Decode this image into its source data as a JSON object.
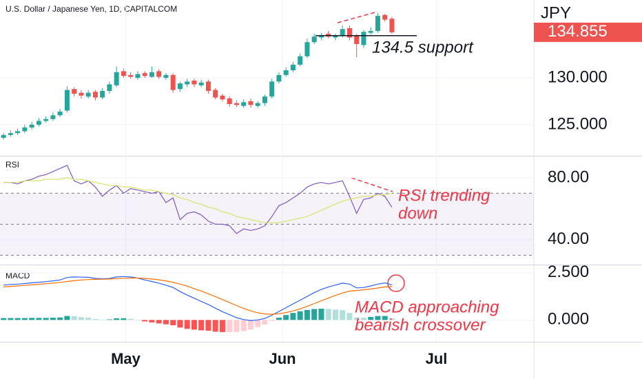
{
  "chart_data": [
    {
      "type": "candlestick",
      "title": "U.S. Dollar / Japanese Yen, 1D, CAPITALCOM",
      "ylabel": "JPY",
      "up_color": "#26a69a",
      "down_color": "#ef5350",
      "open": [
        123.6,
        123.9,
        124.1,
        124.3,
        124.7,
        125.0,
        125.4,
        125.6,
        126.0,
        126.5,
        128.8,
        128.4,
        128.0,
        128.5,
        127.9,
        128.6,
        129.2,
        130.7,
        130.3,
        130.0,
        130.5,
        130.1,
        130.7,
        130.0,
        130.3,
        128.8,
        129.3,
        129.7,
        129.2,
        129.6,
        128.7,
        128.1,
        127.8,
        127.3,
        127.0,
        127.5,
        127.0,
        127.3,
        128.0,
        129.6,
        130.3,
        130.8,
        131.4,
        132.3,
        133.8,
        134.3,
        134.7,
        134.3,
        134.5,
        135.3,
        134.5,
        133.5,
        134.8,
        135.0,
        136.7,
        136.3
      ],
      "high": [
        124.1,
        124.4,
        124.6,
        125.0,
        125.3,
        125.7,
        125.9,
        126.3,
        126.7,
        129.1,
        129.0,
        128.7,
        128.7,
        128.7,
        128.9,
        129.6,
        131.2,
        131.0,
        130.6,
        130.7,
        130.7,
        131.2,
        130.9,
        130.5,
        130.5,
        129.6,
        129.9,
        129.9,
        129.8,
        129.8,
        128.9,
        128.3,
        128.0,
        127.6,
        127.7,
        127.8,
        127.5,
        128.2,
        129.9,
        130.6,
        131.1,
        131.7,
        132.6,
        134.2,
        134.7,
        134.8,
        135.0,
        134.7,
        135.6,
        135.6,
        134.7,
        135.1,
        135.4,
        136.9,
        136.8,
        136.5
      ],
      "low": [
        123.4,
        123.7,
        123.9,
        124.1,
        124.5,
        124.8,
        125.2,
        125.4,
        125.8,
        126.3,
        128.0,
        127.8,
        127.8,
        127.6,
        127.7,
        128.3,
        129.0,
        130.0,
        129.9,
        129.8,
        130.0,
        130.0,
        129.9,
        129.8,
        128.4,
        128.5,
        129.0,
        129.0,
        129.0,
        128.3,
        127.7,
        127.5,
        126.9,
        126.9,
        126.8,
        126.8,
        126.8,
        127.0,
        127.8,
        129.4,
        130.1,
        130.6,
        131.2,
        132.1,
        133.6,
        134.0,
        134.2,
        134.0,
        134.3,
        134.0,
        132.2,
        133.2,
        134.6,
        134.8,
        136.0,
        134.7
      ],
      "close": [
        123.9,
        124.1,
        124.3,
        124.7,
        125.0,
        125.4,
        125.6,
        126.0,
        126.4,
        128.7,
        128.3,
        128.1,
        128.4,
        127.9,
        128.6,
        129.3,
        130.6,
        130.2,
        130.1,
        130.4,
        130.2,
        130.6,
        130.1,
        130.3,
        128.7,
        129.4,
        129.6,
        129.3,
        129.5,
        128.6,
        127.9,
        127.7,
        127.2,
        127.1,
        127.4,
        127.1,
        127.3,
        128.0,
        129.6,
        130.3,
        130.8,
        131.4,
        132.3,
        133.8,
        134.4,
        134.5,
        134.4,
        134.5,
        135.2,
        134.3,
        133.6,
        134.9,
        135.0,
        136.6,
        136.2,
        134.855
      ],
      "ylim": [
        121.76,
        138.3
      ],
      "yticks": [
        {
          "value": 130,
          "label": "130.000"
        },
        {
          "value": 125,
          "label": "125.000"
        }
      ],
      "xlim": [
        -0.5,
        75.1
      ],
      "xticks": [
        {
          "value": 17.3,
          "label": "May"
        },
        {
          "value": 39.5,
          "label": "Jun"
        },
        {
          "value": 61.3,
          "label": "Jul"
        }
      ],
      "support": {
        "value": 134.5,
        "label": "134.5 support"
      }
    },
    {
      "type": "line",
      "title": "RSI",
      "series": [
        {
          "color": "#7e57c2",
          "values": [
            77,
            77,
            76,
            78,
            79,
            81,
            82,
            84,
            86,
            88,
            78,
            76,
            78,
            74,
            68,
            72,
            75,
            70,
            73,
            72,
            71,
            70,
            71,
            64,
            67,
            53,
            57,
            58,
            56,
            52,
            50,
            50,
            49,
            44,
            47,
            46,
            47,
            49,
            55,
            62,
            64,
            67,
            70,
            74,
            76,
            77,
            76,
            77,
            78,
            68,
            57,
            66,
            67,
            70,
            68,
            61
          ]
        },
        {
          "color": "#d9e36a",
          "values": [
            77,
            77,
            77,
            78,
            78,
            78,
            79,
            79,
            79,
            80,
            79,
            79,
            78,
            77,
            76,
            75,
            75,
            74,
            74,
            73,
            72,
            72,
            71,
            70,
            69,
            67,
            66,
            64,
            63,
            61,
            60,
            58,
            57,
            55,
            54,
            53,
            52,
            51,
            51,
            51,
            52,
            53,
            54,
            55,
            57,
            59,
            61,
            63,
            65,
            66,
            67,
            68,
            68,
            69,
            69,
            70
          ]
        }
      ],
      "levels": [
        70,
        50,
        30
      ],
      "band_color": "#7e57c2",
      "ylim": [
        24.4,
        93.3
      ],
      "yticks": [
        {
          "value": 80,
          "label": "80.00"
        },
        {
          "value": 40,
          "label": "40.00"
        }
      ],
      "annotation": [
        "RSI trending",
        "down"
      ]
    },
    {
      "type": "macd",
      "title": "MACD",
      "series": [
        {
          "color": "#2962ff",
          "values": [
            1.85,
            1.88,
            1.9,
            1.93,
            1.97,
            2.0,
            2.03,
            2.07,
            2.12,
            2.25,
            2.28,
            2.27,
            2.26,
            2.2,
            2.18,
            2.2,
            2.28,
            2.3,
            2.28,
            2.22,
            2.12,
            2.04,
            1.95,
            1.84,
            1.72,
            1.5,
            1.32,
            1.15,
            0.98,
            0.82,
            0.62,
            0.44,
            0.28,
            0.12,
            0.02,
            -0.03,
            0.0,
            0.08,
            0.25,
            0.45,
            0.65,
            0.85,
            1.05,
            1.25,
            1.45,
            1.62,
            1.75,
            1.85,
            1.95,
            1.9,
            1.7,
            1.72,
            1.8,
            1.9,
            1.96,
            1.86
          ]
        },
        {
          "color": "#ff6d00",
          "values": [
            1.75,
            1.78,
            1.8,
            1.83,
            1.86,
            1.89,
            1.92,
            1.95,
            1.99,
            2.04,
            2.08,
            2.12,
            2.14,
            2.15,
            2.16,
            2.17,
            2.19,
            2.21,
            2.22,
            2.22,
            2.2,
            2.17,
            2.13,
            2.07,
            2.0,
            1.9,
            1.79,
            1.66,
            1.53,
            1.39,
            1.24,
            1.08,
            0.92,
            0.76,
            0.61,
            0.48,
            0.38,
            0.32,
            0.3,
            0.33,
            0.39,
            0.48,
            0.59,
            0.72,
            0.87,
            1.02,
            1.16,
            1.3,
            1.43,
            1.53,
            1.56,
            1.6,
            1.64,
            1.69,
            1.75,
            1.77
          ]
        }
      ],
      "histogram": {
        "values": [
          0.1,
          0.1,
          0.1,
          0.1,
          0.11,
          0.11,
          0.11,
          0.12,
          0.13,
          0.21,
          0.2,
          0.15,
          0.12,
          0.05,
          0.02,
          0.03,
          0.09,
          0.09,
          0.06,
          0.0,
          -0.08,
          -0.13,
          -0.18,
          -0.23,
          -0.28,
          -0.4,
          -0.47,
          -0.51,
          -0.55,
          -0.57,
          -0.62,
          -0.64,
          -0.64,
          -0.64,
          -0.59,
          -0.51,
          -0.38,
          -0.24,
          -0.05,
          0.12,
          0.26,
          0.37,
          0.46,
          0.53,
          0.58,
          0.6,
          0.59,
          0.55,
          0.52,
          0.37,
          0.14,
          0.12,
          0.16,
          0.21,
          0.21,
          0.09
        ],
        "colors": [
          "#26a69a",
          "#b2dfdb",
          "#ff5252",
          "#ffcdd2"
        ]
      },
      "ylim": [
        -1.12,
        2.86
      ],
      "yticks": [
        {
          "value": 2.5,
          "label": "2.500"
        },
        {
          "value": 0,
          "label": "0.000"
        }
      ],
      "annotation": [
        "MACD approaching",
        "bearish crossover"
      ]
    }
  ]
}
